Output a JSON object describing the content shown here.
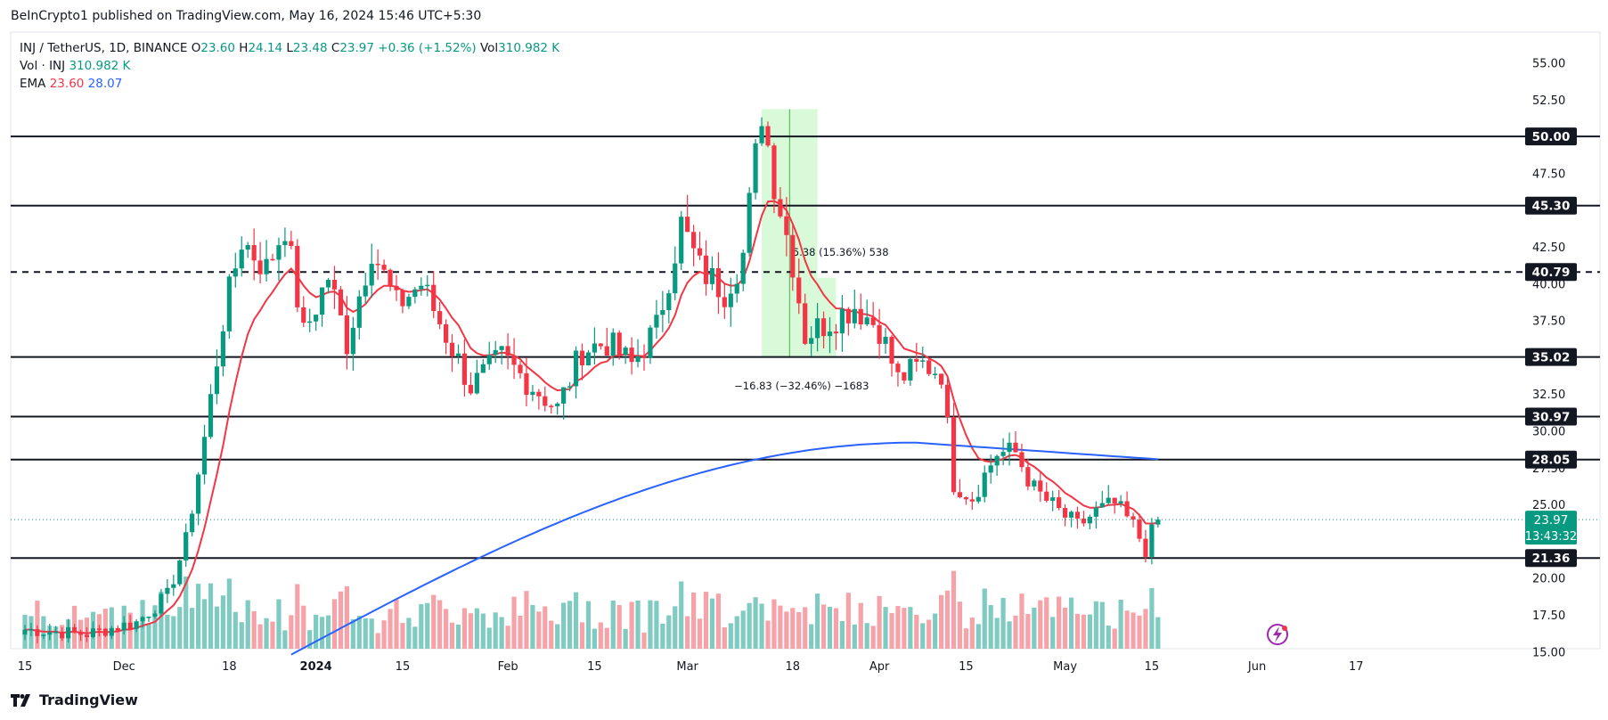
{
  "publisher": "BeInCrypto1 published on TradingView.com, May 16, 2024 15:46 UTC+5:30",
  "legend": {
    "symbol": "INJ / TetherUS, 1D, BINANCE",
    "o_label": "O",
    "o": "23.60",
    "h_label": "H",
    "h": "24.14",
    "l_label": "L",
    "l": "23.48",
    "c_label": "C",
    "c": "23.97",
    "change": "+0.36 (+1.52%)",
    "vol_label": "Vol",
    "vol": "310.982 K",
    "vol_row_label": "Vol · INJ",
    "vol_row_value": "310.982 K",
    "ema_label": "EMA",
    "ema_fast": "23.60",
    "ema_slow": "28.07"
  },
  "footer": {
    "brand": "TradingView"
  },
  "colors": {
    "up": "#089981",
    "down": "#f23645",
    "up_vol": "#7fcbc1",
    "down_vol": "#f5a3a8",
    "ema_fast": "#f23645",
    "ema_slow": "#2962ff"
  },
  "chart_data": {
    "type": "candlestick",
    "title": "INJ / TetherUS, 1D, BINANCE",
    "y_axis": {
      "min": 15,
      "max": 55,
      "ticks": [
        "55.00",
        "52.50",
        "47.50",
        "42.50",
        "40.00",
        "37.50",
        "32.50",
        "30.00",
        "27.50",
        "25.00",
        "20.00",
        "17.50",
        "15.00"
      ]
    },
    "x_axis": {
      "ticks": [
        {
          "label": "15",
          "date": "2023-11-15"
        },
        {
          "label": "Dec",
          "date": "2023-12-01"
        },
        {
          "label": "18",
          "date": "2023-12-18"
        },
        {
          "label": "2024",
          "date": "2024-01-01"
        },
        {
          "label": "15",
          "date": "2024-01-15"
        },
        {
          "label": "Feb",
          "date": "2024-02-01"
        },
        {
          "label": "15",
          "date": "2024-02-15"
        },
        {
          "label": "Mar",
          "date": "2024-03-01"
        },
        {
          "label": "18",
          "date": "2024-03-18"
        },
        {
          "label": "Apr",
          "date": "2024-04-01"
        },
        {
          "label": "15",
          "date": "2024-04-15"
        },
        {
          "label": "May",
          "date": "2024-05-01"
        },
        {
          "label": "15",
          "date": "2024-05-15"
        },
        {
          "label": "Jun",
          "date": "2024-06-01"
        },
        {
          "label": "17",
          "date": "2024-06-17"
        }
      ]
    },
    "horizontal_levels": [
      {
        "value": 50.0,
        "label": "50.00",
        "style": "solid"
      },
      {
        "value": 45.3,
        "label": "45.30",
        "style": "solid"
      },
      {
        "value": 40.79,
        "label": "40.79",
        "style": "dashed"
      },
      {
        "value": 35.02,
        "label": "35.02",
        "style": "solid"
      },
      {
        "value": 30.97,
        "label": "30.97",
        "style": "solid"
      },
      {
        "value": 28.05,
        "label": "28.05",
        "style": "solid"
      },
      {
        "value": 21.36,
        "label": "21.36",
        "style": "solid"
      }
    ],
    "current_price": {
      "value": 23.97,
      "label": "23.97",
      "countdown": "13:43:32"
    },
    "measurements": [
      {
        "label": "5.38 (15.36%) 538",
        "from": 35.02,
        "to": 40.4
      },
      {
        "label": "−16.83 (−32.46%) −1683",
        "from": 51.85,
        "to": 35.02
      }
    ],
    "anchors": [
      {
        "date": "2023-11-15",
        "price": 16.5
      },
      {
        "date": "2023-11-25",
        "price": 16.2
      },
      {
        "date": "2023-12-03",
        "price": 17.0
      },
      {
        "date": "2023-12-08",
        "price": 18.8
      },
      {
        "date": "2023-12-11",
        "price": 22.5
      },
      {
        "date": "2023-12-14",
        "price": 29.5
      },
      {
        "date": "2023-12-17",
        "price": 37.5
      },
      {
        "date": "2023-12-20",
        "price": 43.0
      },
      {
        "date": "2023-12-24",
        "price": 41.0
      },
      {
        "date": "2023-12-27",
        "price": 44.0
      },
      {
        "date": "2023-12-30",
        "price": 36.5
      },
      {
        "date": "2024-01-03",
        "price": 40.5
      },
      {
        "date": "2024-01-06",
        "price": 36.0
      },
      {
        "date": "2024-01-10",
        "price": 42.5
      },
      {
        "date": "2024-01-14",
        "price": 38.5
      },
      {
        "date": "2024-01-18",
        "price": 40.0
      },
      {
        "date": "2024-01-22",
        "price": 36.5
      },
      {
        "date": "2024-01-26",
        "price": 33.0
      },
      {
        "date": "2024-01-31",
        "price": 35.0
      },
      {
        "date": "2024-02-05",
        "price": 33.0
      },
      {
        "date": "2024-02-09",
        "price": 31.5
      },
      {
        "date": "2024-02-13",
        "price": 35.5
      },
      {
        "date": "2024-02-17",
        "price": 36.0
      },
      {
        "date": "2024-02-21",
        "price": 34.5
      },
      {
        "date": "2024-02-25",
        "price": 37.0
      },
      {
        "date": "2024-02-29",
        "price": 44.0
      },
      {
        "date": "2024-03-03",
        "price": 41.0
      },
      {
        "date": "2024-03-07",
        "price": 39.5
      },
      {
        "date": "2024-03-10",
        "price": 42.0
      },
      {
        "date": "2024-03-13",
        "price": 51.8
      },
      {
        "date": "2024-03-15",
        "price": 47.0
      },
      {
        "date": "2024-03-18",
        "price": 41.5
      },
      {
        "date": "2024-03-20",
        "price": 36.5
      },
      {
        "date": "2024-03-24",
        "price": 37.5
      },
      {
        "date": "2024-03-28",
        "price": 38.5
      },
      {
        "date": "2024-04-01",
        "price": 37.0
      },
      {
        "date": "2024-04-04",
        "price": 33.5
      },
      {
        "date": "2024-04-08",
        "price": 34.5
      },
      {
        "date": "2024-04-11",
        "price": 34.0
      },
      {
        "date": "2024-04-13",
        "price": 26.5
      },
      {
        "date": "2024-04-16",
        "price": 25.5
      },
      {
        "date": "2024-04-20",
        "price": 28.5
      },
      {
        "date": "2024-04-23",
        "price": 28.5
      },
      {
        "date": "2024-04-26",
        "price": 26.0
      },
      {
        "date": "2024-04-30",
        "price": 24.5
      },
      {
        "date": "2024-05-03",
        "price": 23.5
      },
      {
        "date": "2024-05-06",
        "price": 24.5
      },
      {
        "date": "2024-05-09",
        "price": 25.0
      },
      {
        "date": "2024-05-12",
        "price": 23.5
      },
      {
        "date": "2024-05-14",
        "price": 22.0
      },
      {
        "date": "2024-05-16",
        "price": 23.97
      }
    ],
    "ema_fast_value": 23.6,
    "ema_slow_value": 28.07
  }
}
